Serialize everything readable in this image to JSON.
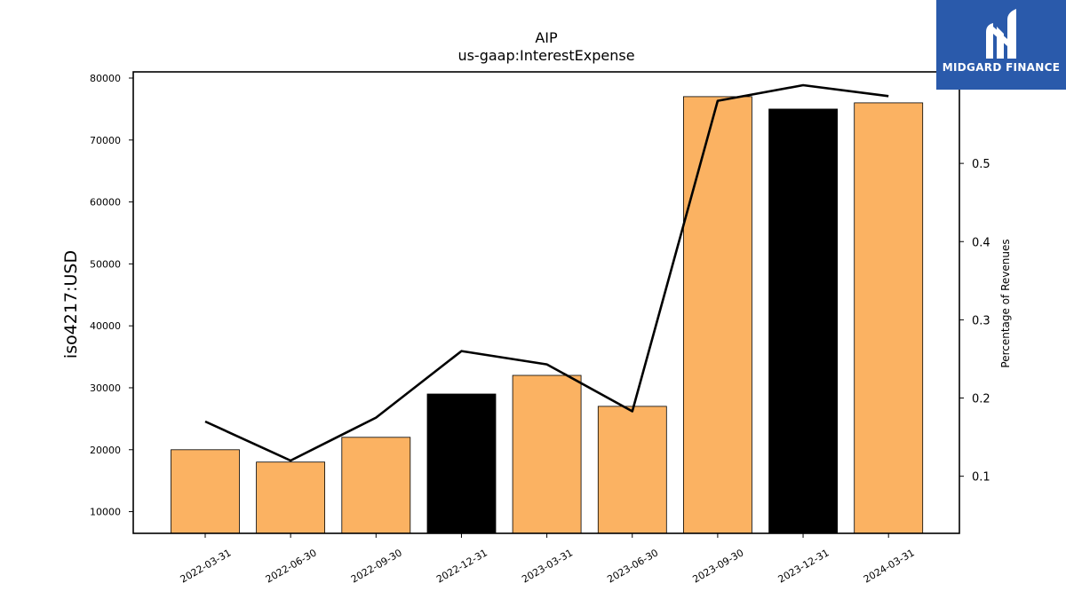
{
  "chart_data": {
    "type": "bar",
    "title": "AIP",
    "subtitle": "us-gaap:InterestExpense",
    "ylabel": "iso4217:USD",
    "y2label": "Percentage of Revenues",
    "categories": [
      "2022-03-31",
      "2022-06-30",
      "2022-09-30",
      "2022-12-31",
      "2023-03-31",
      "2023-06-30",
      "2023-09-30",
      "2023-12-31",
      "2024-03-31"
    ],
    "values": [
      20000,
      18000,
      22000,
      29000,
      32000,
      27000,
      77000,
      75000,
      76000
    ],
    "bar_colors": [
      "#fbb262",
      "#fbb262",
      "#fbb262",
      "#000000",
      "#fbb262",
      "#fbb262",
      "#fbb262",
      "#000000",
      "#fbb262"
    ],
    "line_values": [
      0.17,
      0.12,
      0.175,
      0.26,
      0.243,
      0.183,
      0.58,
      0.6,
      0.586
    ],
    "line_color": "#000000",
    "ylim": [
      6500,
      81000
    ],
    "y2lim": [
      0.027,
      0.617
    ],
    "yticks": [
      10000,
      20000,
      30000,
      40000,
      50000,
      60000,
      70000,
      80000
    ],
    "y2ticks": [
      0.1,
      0.2,
      0.3,
      0.4,
      0.5,
      0.6
    ],
    "grid": false
  },
  "logo": {
    "text": "MIDGARD FINANCE",
    "bg_color": "#2a5aab",
    "icon": "midgard-logo-icon"
  }
}
